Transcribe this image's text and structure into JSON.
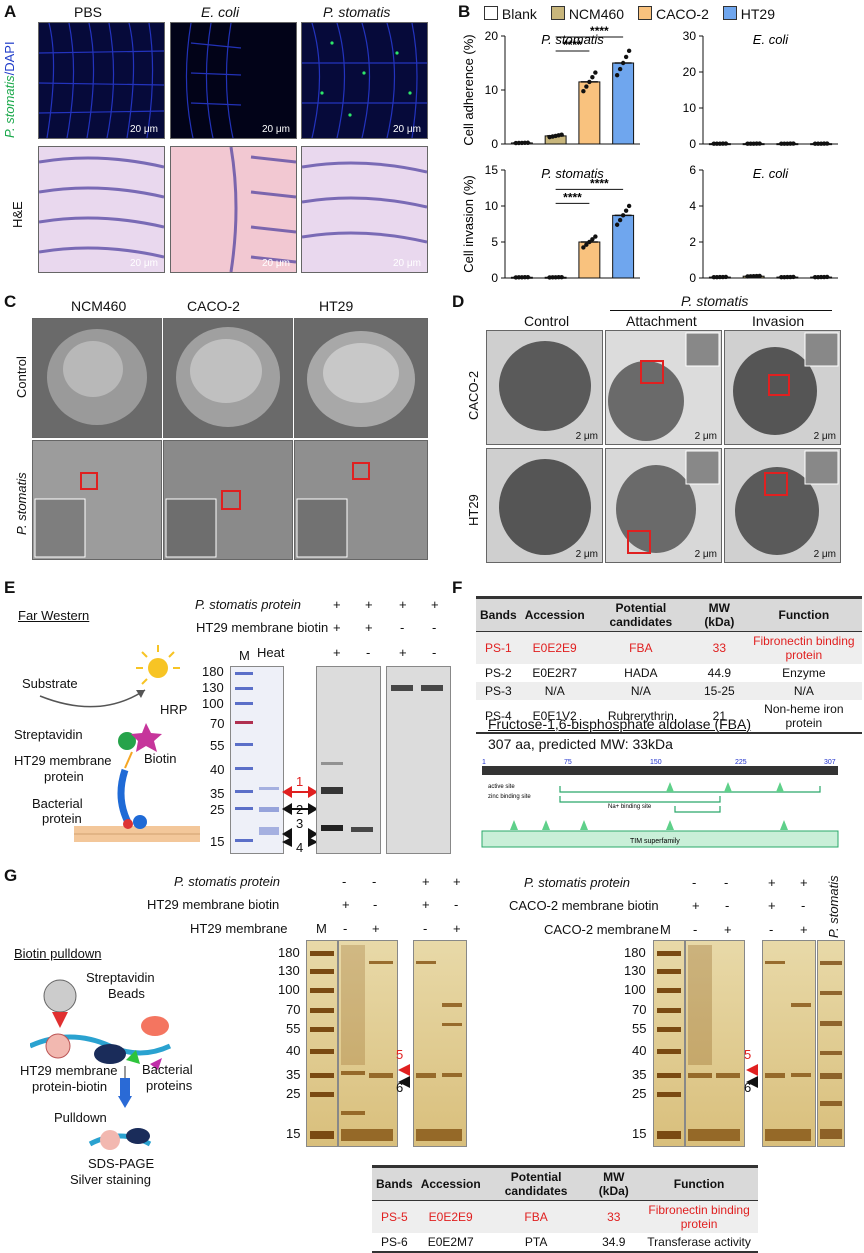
{
  "panels": {
    "A": "A",
    "B": "B",
    "C": "C",
    "D": "D",
    "E": "E",
    "F": "F",
    "G": "G"
  },
  "panelA": {
    "cols": [
      "PBS",
      "E. coli",
      "P. stomatis"
    ],
    "row_fluor_label_a": "P. stomatis",
    "row_fluor_label_b": "/DAPI",
    "row_he_label": "H&E",
    "scale": "20 μm"
  },
  "panelB": {
    "legend": [
      {
        "name": "Blank",
        "color": "#ffffff"
      },
      {
        "name": "NCM460",
        "color": "#c8b67c"
      },
      {
        "name": "CACO-2",
        "color": "#f9c27e"
      },
      {
        "name": "HT29",
        "color": "#6fa6ee"
      }
    ],
    "sig": "****"
  },
  "chart_data": [
    {
      "type": "bar",
      "title": "P. stomatis",
      "ylabel": "Cell adherence (%)",
      "ylim": [
        0,
        20
      ],
      "yticks": [
        "0",
        "10",
        "20"
      ],
      "categories": [
        "Blank",
        "NCM460",
        "CACO-2",
        "HT29"
      ],
      "values": [
        0.2,
        1.5,
        11.5,
        15
      ]
    },
    {
      "type": "bar",
      "title": "E. coli",
      "ylabel": "",
      "ylim": [
        0,
        30
      ],
      "yticks": [
        "0",
        "10",
        "20",
        "30"
      ],
      "categories": [
        "Blank",
        "NCM460",
        "CACO-2",
        "HT29"
      ],
      "values": [
        0.1,
        0.1,
        0.1,
        0.1
      ]
    },
    {
      "type": "bar",
      "title": "P. stomatis",
      "ylabel": "Cell invasion (%)",
      "ylim": [
        0,
        15
      ],
      "yticks": [
        "0",
        "5",
        "10",
        "15"
      ],
      "categories": [
        "Blank",
        "NCM460",
        "CACO-2",
        "HT29"
      ],
      "values": [
        0.1,
        0.1,
        5.0,
        8.7
      ]
    },
    {
      "type": "bar",
      "title": "E. coli",
      "ylabel": "",
      "ylim": [
        0,
        6
      ],
      "yticks": [
        "0",
        "2",
        "4",
        "6"
      ],
      "categories": [
        "Blank",
        "NCM460",
        "CACO-2",
        "HT29"
      ],
      "values": [
        0.05,
        0.1,
        0.05,
        0.05
      ]
    }
  ],
  "panelC": {
    "cols": [
      "NCM460",
      "CACO-2",
      "HT29"
    ],
    "rows": [
      "Control",
      "P. stomatis"
    ]
  },
  "panelD": {
    "group": "P. stomatis",
    "cols": [
      "Control",
      "Attachment",
      "Invasion"
    ],
    "rows": [
      "CACO-2",
      "HT29"
    ],
    "scale": "2 μm"
  },
  "panelE": {
    "title": "Far Western",
    "diagram": {
      "substrate": "Substrate",
      "streptavidin": "Streptavidin",
      "hrp": "HRP",
      "membrane1": "HT29 membrane",
      "membrane2": "protein",
      "biotin": "Biotin",
      "bact1": "Bacterial",
      "bact2": "protein"
    },
    "conditions": [
      {
        "label": "P. stomatis protein",
        "vals": [
          "+",
          "+",
          "+",
          "+"
        ]
      },
      {
        "label": "HT29 membrane biotin",
        "vals": [
          "+",
          "+",
          "-",
          "-"
        ]
      },
      {
        "label": "Heat",
        "vals": [
          "+",
          "-",
          "+",
          "-"
        ]
      }
    ],
    "marker": "M",
    "mw": [
      "180",
      "130",
      "100",
      "70",
      "55",
      "40",
      "35",
      "25",
      "15"
    ],
    "bands": [
      "1",
      "2",
      "3",
      "4"
    ]
  },
  "panelF": {
    "headers": [
      "Bands",
      "Accession",
      "Potential candidates",
      "MW (kDa)",
      "Function"
    ],
    "rows": [
      [
        "PS-1",
        "E0E2E9",
        "FBA",
        "33",
        "Fibronectin binding protein"
      ],
      [
        "PS-2",
        "E0E2R7",
        "HADA",
        "44.9",
        "Enzyme"
      ],
      [
        "PS-3",
        "N/A",
        "N/A",
        "15-25",
        "N/A"
      ],
      [
        "PS-4",
        "E0E1V2",
        "Rubrerythrin",
        "21",
        "Non-heme iron protein"
      ]
    ],
    "fba_title": "Fructose-1,6-bisphosphate aldolase (FBA)",
    "fba_sub": "307 aa, predicted MW: 33kDa",
    "ruler": [
      "1",
      "75",
      "150",
      "225",
      "307"
    ],
    "sites": [
      "active site",
      "zinc binding site",
      "Na+ binding site",
      "TIM superfamily"
    ]
  },
  "panelG": {
    "title": "Biotin pulldown",
    "diagram": {
      "beads1": "Streptavidin",
      "beads2": "Beads",
      "mem1": "HT29 membrane",
      "mem2": "protein-biotin",
      "bact1": "Bacterial",
      "bact2": "proteins",
      "pulldown": "Pulldown",
      "sds1": "SDS-PAGE",
      "sds2": "Silver staining"
    },
    "left_conditions": [
      {
        "label": "P. stomatis protein",
        "vals": [
          "-",
          "-",
          "+",
          "+"
        ]
      },
      {
        "label": "HT29 membrane biotin",
        "vals": [
          "+",
          "-",
          "+",
          "-"
        ]
      },
      {
        "label": "HT29 membrane",
        "vals": [
          "-",
          "+",
          "-",
          "+"
        ]
      }
    ],
    "right_conditions": [
      {
        "label": "P. stomatis protein",
        "vals": [
          "-",
          "-",
          "+",
          "+"
        ]
      },
      {
        "label": "CACO-2 membrane biotin",
        "vals": [
          "+",
          "-",
          "+",
          "-"
        ]
      },
      {
        "label": "CACO-2 membrane",
        "vals": [
          "-",
          "+",
          "-",
          "+"
        ]
      }
    ],
    "lane_extra": "P. stomatis",
    "marker": "M",
    "mw": [
      "180",
      "130",
      "100",
      "70",
      "55",
      "40",
      "35",
      "25",
      "15"
    ],
    "bands": [
      "5",
      "6"
    ],
    "table_headers": [
      "Bands",
      "Accession",
      "Potential candidates",
      "MW (kDa)",
      "Function"
    ],
    "table_rows": [
      [
        "PS-5",
        "E0E2E9",
        "FBA",
        "33",
        "Fibronectin binding protein"
      ],
      [
        "PS-6",
        "E0E2M7",
        "PTA",
        "34.9",
        "Transferase activity"
      ]
    ]
  }
}
